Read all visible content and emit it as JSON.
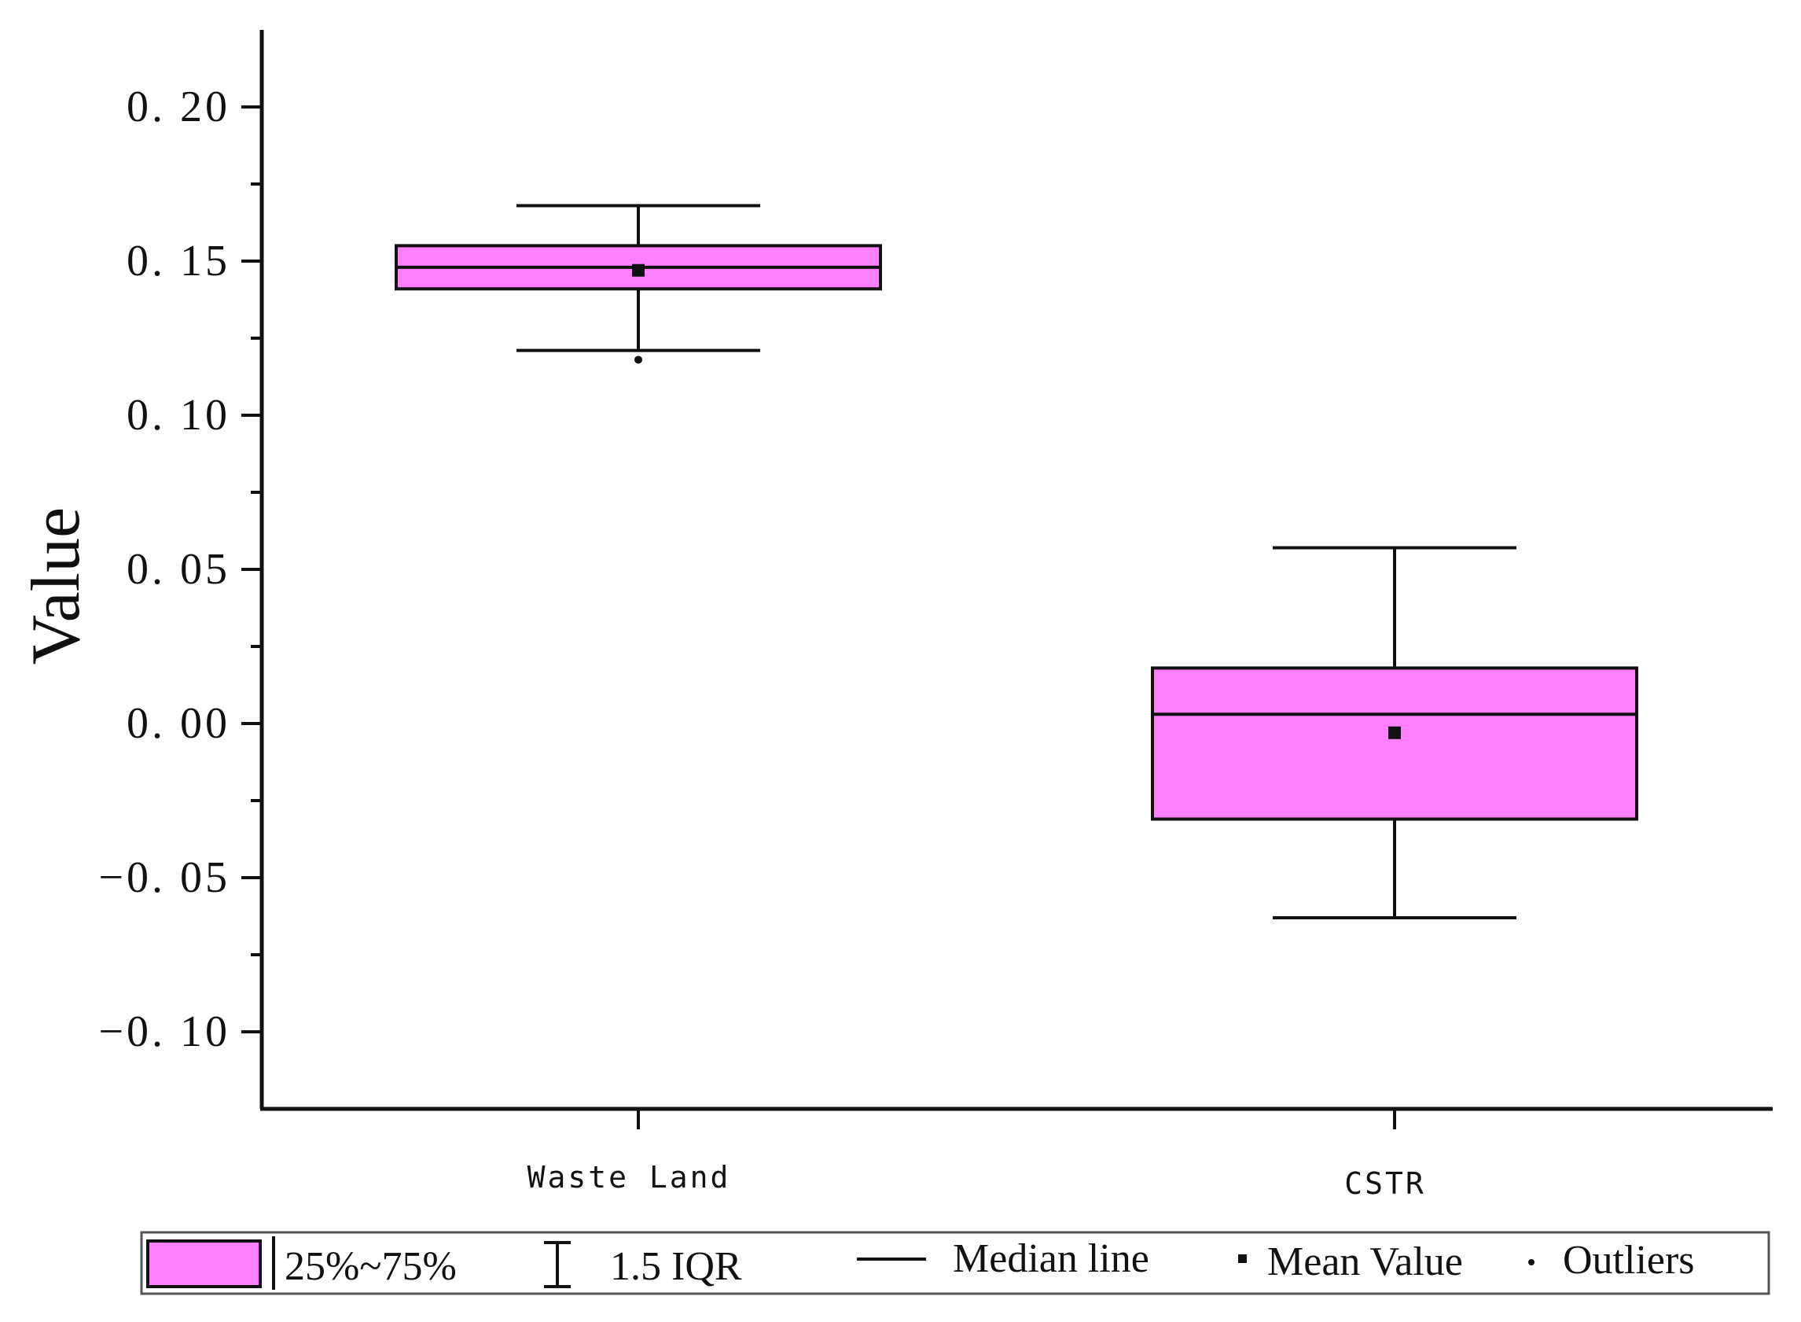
{
  "chart_data": {
    "type": "boxplot",
    "ylabel": "Value",
    "xlabel": "",
    "ylim": [
      -0.125,
      0.225
    ],
    "y_ticks": [
      {
        "value": 0.2,
        "label": "0. 20"
      },
      {
        "value": 0.15,
        "label": "0. 15"
      },
      {
        "value": 0.1,
        "label": "0. 10"
      },
      {
        "value": 0.05,
        "label": "0. 05"
      },
      {
        "value": 0.0,
        "label": "0. 00"
      },
      {
        "value": -0.05,
        "label": "−0. 05"
      },
      {
        "value": -0.1,
        "label": "−0. 10"
      }
    ],
    "categories": [
      "Waste Land",
      "CSTR"
    ],
    "boxes": [
      {
        "category": "Waste Land",
        "q1": 0.141,
        "median": 0.148,
        "q3": 0.155,
        "whisker_low": 0.121,
        "whisker_high": 0.168,
        "mean": 0.147,
        "outliers": [
          0.118
        ]
      },
      {
        "category": "CSTR",
        "q1": -0.031,
        "median": 0.003,
        "q3": 0.018,
        "whisker_low": -0.063,
        "whisker_high": 0.057,
        "mean": -0.003,
        "outliers": []
      }
    ],
    "grid": false,
    "box_color": "#ff80ff",
    "legend": {
      "position": "bottom",
      "items": {
        "box": "25%~75%",
        "whisker": "1.5 IQR",
        "median": "Median line",
        "mean": "Mean Value",
        "outliers": "Outliers"
      }
    }
  }
}
